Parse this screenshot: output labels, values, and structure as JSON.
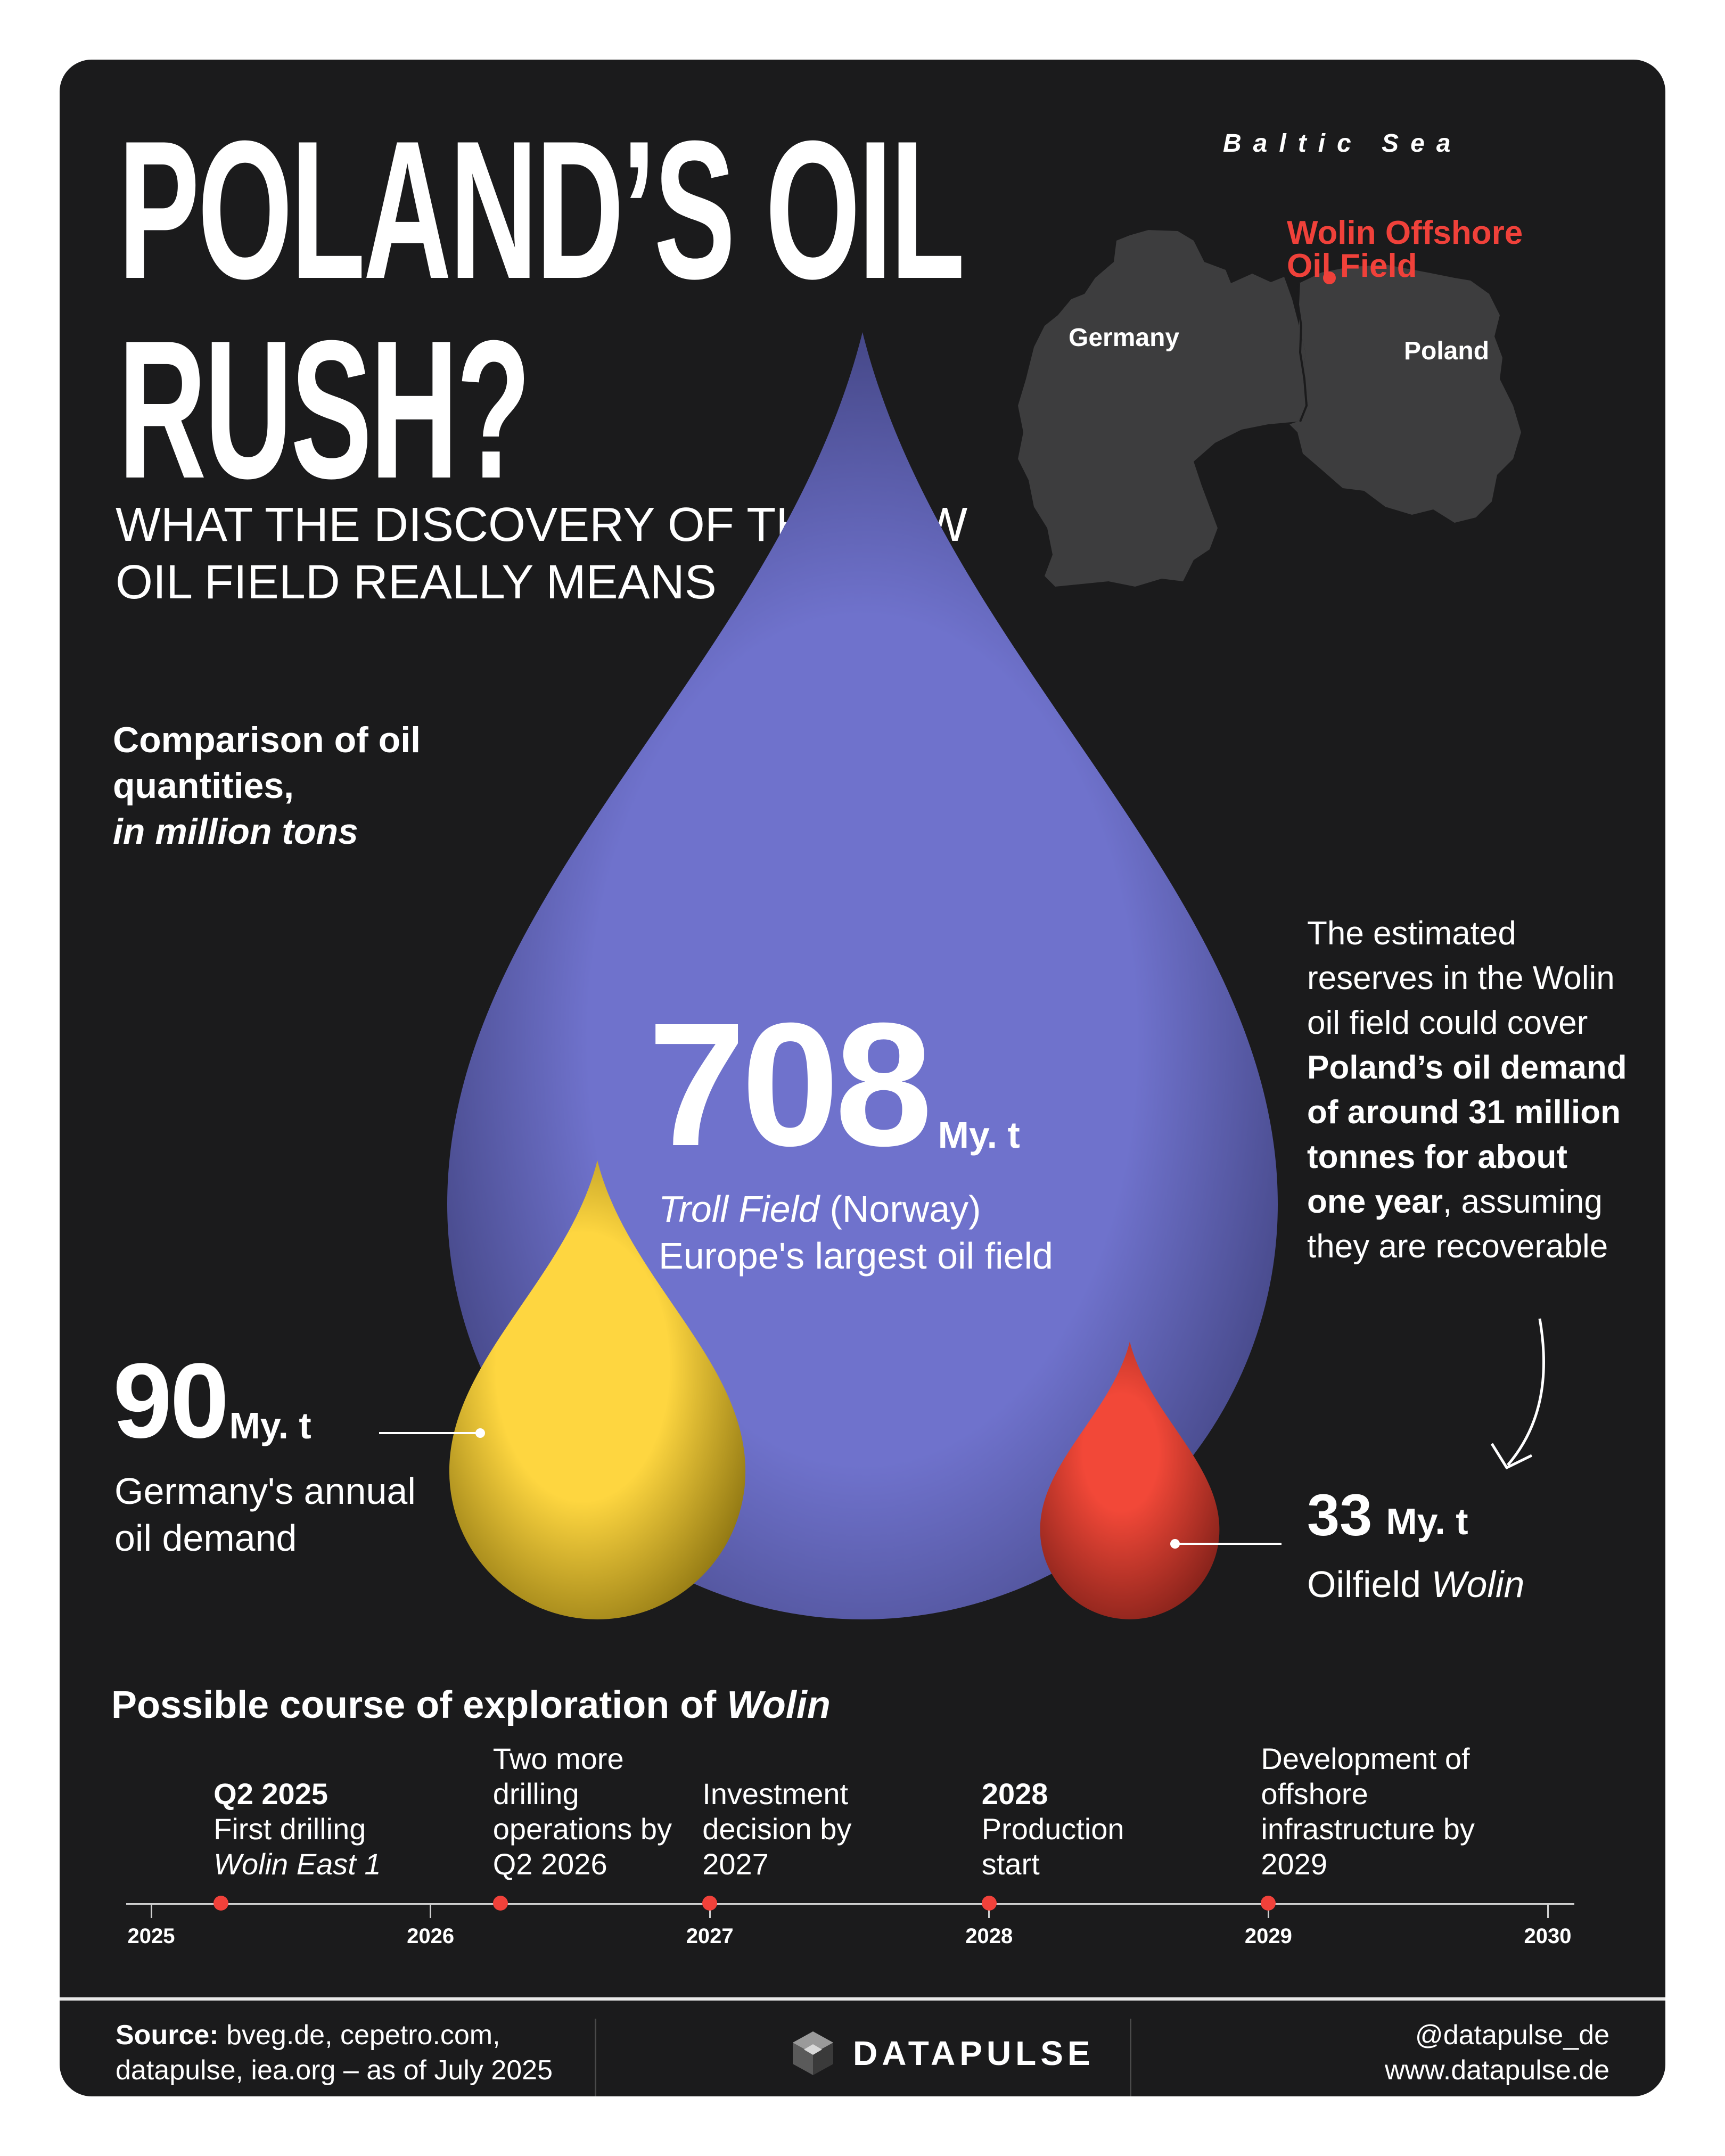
{
  "header": {
    "title_line1": "POLAND’S OIL",
    "title_line2": "RUSH?",
    "subtitle_line1": "WHAT THE DISCOVERY OF THE NEW",
    "subtitle_line2": "OIL FIELD REALLY MEANS"
  },
  "map": {
    "sea_label": "Baltic Sea",
    "germany_label": "Germany",
    "poland_label": "Poland",
    "wolin_line1": "Wolin Offshore",
    "wolin_line2": "Oil Field"
  },
  "comparison": {
    "title_line1": "Comparison of oil",
    "title_line2": "quantities,",
    "title_line3": "in million tons"
  },
  "chart_data": {
    "type": "bubble",
    "unit": "My. t",
    "items": [
      {
        "key": "troll",
        "value": 708,
        "name_em": "Troll Field",
        "name_rest": " (Norway)",
        "desc": "Europe's largest oil field",
        "color": "#6f72cc"
      },
      {
        "key": "germany",
        "value": 90,
        "desc_line1": "Germany's annual",
        "desc_line2": "oil demand",
        "color": "#fed640"
      },
      {
        "key": "wolin",
        "value": 33,
        "name_rest": "Oilfield ",
        "name_em": "Wolin",
        "color": "#f24838"
      }
    ]
  },
  "note": {
    "l1": "The estimated",
    "l2": "reserves in the Wolin",
    "l3": "oil field could cover",
    "b1": "Poland’s oil demand",
    "b2": "of around 31 million",
    "b3": "tonnes for about",
    "b4": "one year",
    "l4": ", assuming",
    "l5": "they are recoverable"
  },
  "timeline": {
    "title": "Possible course of exploration of ",
    "title_em": "Wolin",
    "years": [
      "2025",
      "2026",
      "2027",
      "2028",
      "2029",
      "2030"
    ],
    "events": [
      {
        "date": 2025.25,
        "bold": "Q2 2025",
        "l1": "First drilling",
        "em": "Wolin East 1"
      },
      {
        "date": 2026.25,
        "l1": "Two more",
        "l2": "drilling",
        "l3": "operations by",
        "l4": "Q2 2026"
      },
      {
        "date": 2027.0,
        "l1": "Investment",
        "l2": "decision by",
        "l3": "2027"
      },
      {
        "date": 2028.0,
        "bold": "2028",
        "l1": "Production",
        "l2": "start"
      },
      {
        "date": 2029.0,
        "l1": "Development of",
        "l2": "offshore",
        "l3": "infrastructure by",
        "l4": "2029"
      }
    ]
  },
  "footer": {
    "source_label": "Source:",
    "source_line1": " bveg.de, cepetro.com,",
    "source_line2": "datapulse, iea.org – as of July 2025",
    "brand": "DATAPULSE",
    "handle": "@datapulse_de",
    "site": "www.datapulse.de"
  },
  "colors": {
    "background": "#1b1b1c",
    "troll": "#6f72cc",
    "germany": "#fed640",
    "wolin": "#f24838",
    "accent_red": "#f0413a",
    "map_land": "#3d3d3e"
  }
}
